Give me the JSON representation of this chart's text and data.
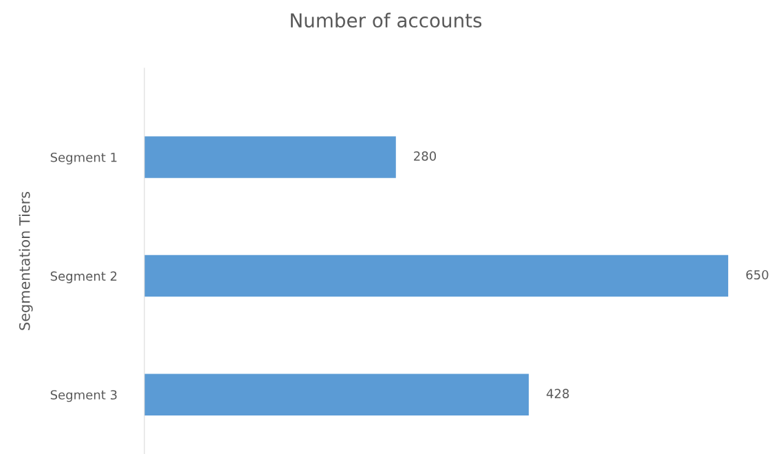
{
  "chart_data": {
    "type": "bar",
    "orientation": "horizontal",
    "title": "Number of accounts",
    "ylabel": "Segmentation Tiers",
    "categories": [
      "Segment 1",
      "Segment 2",
      "Segment 3"
    ],
    "values": [
      280,
      650,
      428
    ],
    "color": "#5b9bd5",
    "data_labels": true,
    "grid": false,
    "legend": false
  }
}
